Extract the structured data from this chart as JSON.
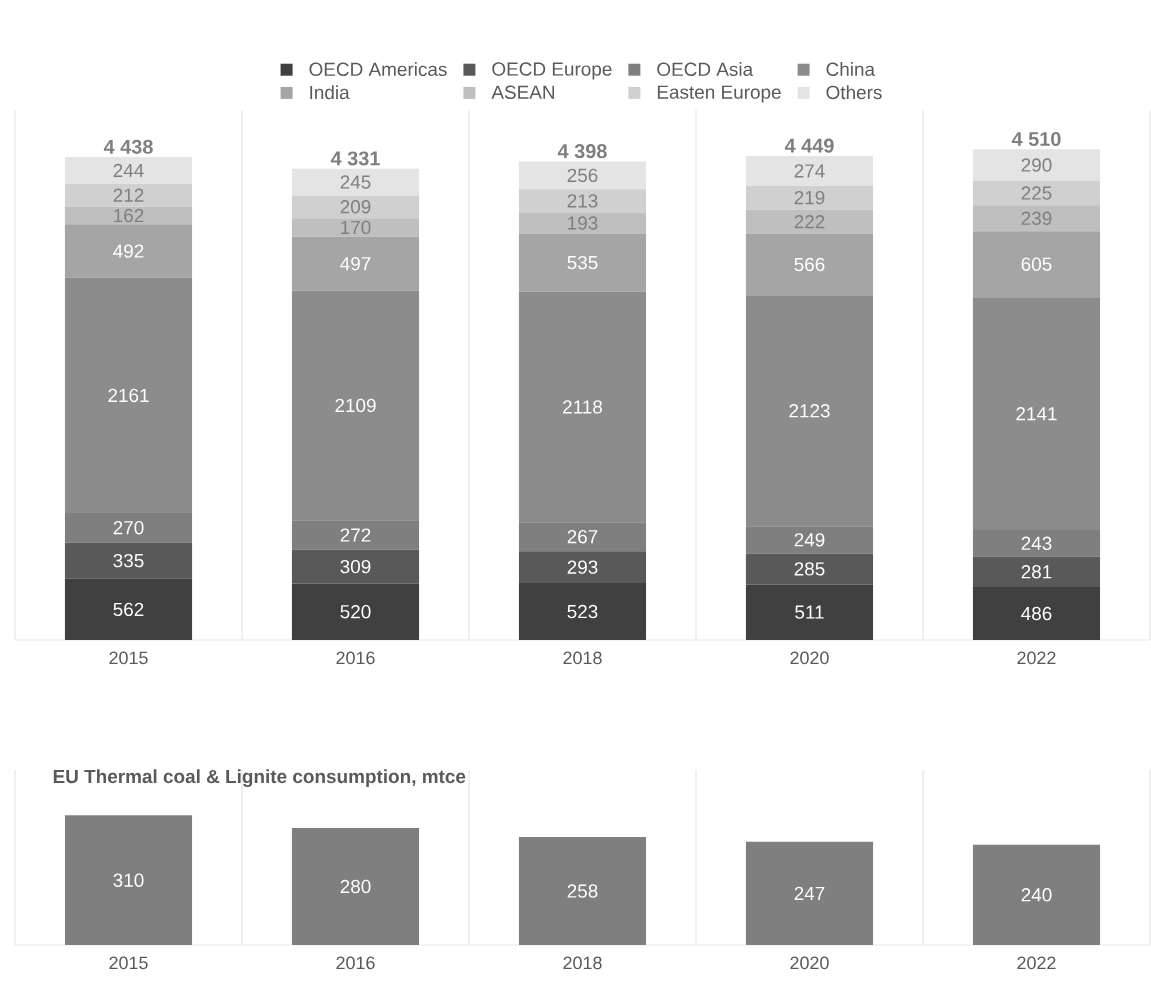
{
  "chart_data": [
    {
      "type": "bar",
      "stacked": true,
      "categories": [
        "2015",
        "2016",
        "2018",
        "2020",
        "2022"
      ],
      "series": [
        {
          "name": "OECD Americas",
          "color": "#404040",
          "values": [
            562,
            520,
            523,
            511,
            486
          ]
        },
        {
          "name": "OECD Europe",
          "color": "#595959",
          "values": [
            335,
            309,
            293,
            285,
            281
          ]
        },
        {
          "name": "OECD Asia",
          "color": "#7f7f7f",
          "values": [
            270,
            272,
            267,
            249,
            243
          ]
        },
        {
          "name": "China",
          "color": "#8c8c8c",
          "values": [
            2161,
            2109,
            2118,
            2123,
            2141
          ]
        },
        {
          "name": "India",
          "color": "#a5a5a5",
          "values": [
            492,
            497,
            535,
            566,
            605
          ]
        },
        {
          "name": "ASEAN",
          "color": "#bfbfbf",
          "values": [
            162,
            170,
            193,
            222,
            239
          ]
        },
        {
          "name": "Easten Europe",
          "color": "#d0d0d0",
          "values": [
            212,
            209,
            213,
            219,
            225
          ]
        },
        {
          "name": "Others",
          "color": "#e4e4e4",
          "values": [
            244,
            245,
            256,
            274,
            290
          ]
        }
      ],
      "data_labels": true,
      "totals": [
        "4 438",
        "4 331",
        "4 398",
        "4 449",
        "4 510"
      ],
      "legend": "top",
      "grid": "x"
    },
    {
      "type": "bar",
      "title": "EU Thermal coal & Lignite consumption, mtce",
      "categories": [
        "2015",
        "2016",
        "2018",
        "2020",
        "2022"
      ],
      "values": [
        310,
        280,
        258,
        247,
        240
      ],
      "color": "#7f7f7f",
      "data_labels": true,
      "grid": "x"
    }
  ]
}
